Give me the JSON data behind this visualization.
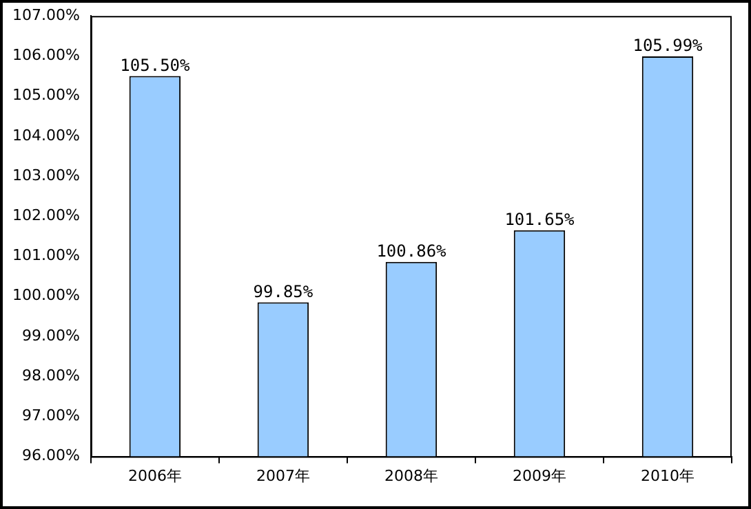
{
  "chart_data": {
    "type": "bar",
    "categories": [
      "2006年",
      "2007年",
      "2008年",
      "2009年",
      "2010年"
    ],
    "values": [
      105.5,
      99.85,
      100.86,
      101.65,
      105.99
    ],
    "value_labels": [
      "105.50%",
      "99.85%",
      "100.86%",
      "101.65%",
      "105.99%"
    ],
    "color": "#99ccff",
    "ylim": [
      96,
      107
    ],
    "yticks": [
      {
        "value": 96,
        "label": "96.00%"
      },
      {
        "value": 97,
        "label": "97.00%"
      },
      {
        "value": 98,
        "label": "98.00%"
      },
      {
        "value": 99,
        "label": "99.00%"
      },
      {
        "value": 100,
        "label": "100.00%"
      },
      {
        "value": 101,
        "label": "101.00%"
      },
      {
        "value": 102,
        "label": "102.00%"
      },
      {
        "value": 103,
        "label": "103.00%"
      },
      {
        "value": 104,
        "label": "104.00%"
      },
      {
        "value": 105,
        "label": "105.00%"
      },
      {
        "value": 106,
        "label": "106.00%"
      },
      {
        "value": 107,
        "label": "107.00%"
      }
    ],
    "grid": false,
    "legend": false
  }
}
